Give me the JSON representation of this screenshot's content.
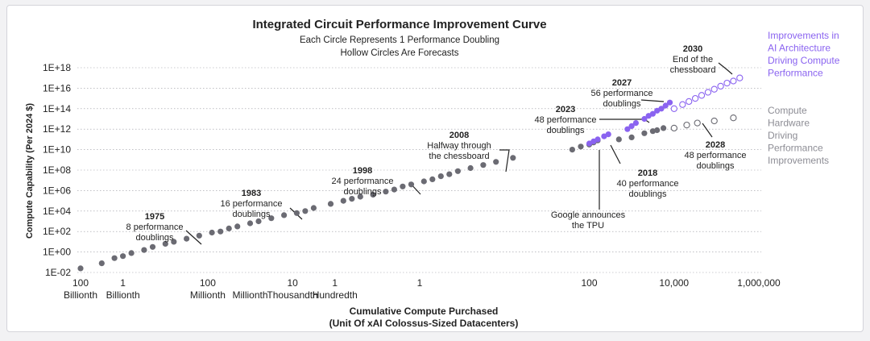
{
  "colors": {
    "hardware": "#6b6b73",
    "architecture": "#8a63f0",
    "text": "#222222",
    "grid": "#9a9aa2",
    "legend_hw": "#8d8d95",
    "legend_arch": "#8a63f0"
  },
  "chart_data": {
    "type": "scatter",
    "title": "Integrated Circuit Performance Improvement Curve",
    "subtitle": [
      "Each Circle Represents 1 Performance Doubling",
      "Hollow Circles Are Forecasts"
    ],
    "xlabel": [
      "Cumulative Compute Purchased",
      "(Unit Of xAI Colossus-Sized Datacenters)"
    ],
    "ylabel": "Compute Capability (Per 2024 $)",
    "x_scale": "log",
    "y_scale": "log",
    "xlim_log10": [
      -11,
      6.1
    ],
    "ylim_log10": [
      -2,
      18
    ],
    "x_ticks": [
      {
        "pos": -10,
        "value": "100",
        "unit": "Billionth"
      },
      {
        "pos": -9,
        "value": "1",
        "unit": "Billionth"
      },
      {
        "pos": -7,
        "value": "100",
        "unit": "Millionth"
      },
      {
        "pos": -6,
        "value": "",
        "unit": "Millionth"
      },
      {
        "pos": -5,
        "value": "10",
        "unit": "Thousandth"
      },
      {
        "pos": -4,
        "value": "1",
        "unit": "Hundredth"
      },
      {
        "pos": -2,
        "value": "1",
        "unit": ""
      },
      {
        "pos": 2,
        "value": "100",
        "unit": ""
      },
      {
        "pos": 4,
        "value": "10,000",
        "unit": ""
      },
      {
        "pos": 6,
        "value": "1,000,000",
        "unit": ""
      }
    ],
    "y_ticks": [
      "1E-02",
      "1E+00",
      "1E+02",
      "1E+04",
      "1E+06",
      "1E+08",
      "1E+10",
      "1E+12",
      "1E+14",
      "1E+16",
      "1E+18"
    ],
    "series": [
      {
        "name": "Compute Hardware Driving Performance Improvements",
        "color": "#6b6b73",
        "hollow": false,
        "points": [
          [
            -10,
            -1.6
          ],
          [
            -9.5,
            -1.1
          ],
          [
            -9.2,
            -0.6
          ],
          [
            -9.0,
            -0.4
          ],
          [
            -8.8,
            -0.1
          ],
          [
            -8.5,
            0.2
          ],
          [
            -8.3,
            0.5
          ],
          [
            -8.0,
            0.8
          ],
          [
            -7.8,
            1.0
          ],
          [
            -7.5,
            1.3
          ],
          [
            -7.2,
            1.6
          ],
          [
            -6.9,
            1.9
          ],
          [
            -6.7,
            2.0
          ],
          [
            -6.5,
            2.3
          ],
          [
            -6.3,
            2.5
          ],
          [
            -6.0,
            2.8
          ],
          [
            -5.8,
            3.0
          ],
          [
            -5.5,
            3.3
          ],
          [
            -5.2,
            3.6
          ],
          [
            -4.9,
            3.8
          ],
          [
            -4.7,
            4.0
          ],
          [
            -4.5,
            4.3
          ],
          [
            -4.1,
            4.7
          ],
          [
            -3.8,
            5.0
          ],
          [
            -3.6,
            5.2
          ],
          [
            -3.4,
            5.4
          ],
          [
            -3.1,
            5.6
          ],
          [
            -2.8,
            5.9
          ],
          [
            -2.6,
            6.1
          ],
          [
            -2.4,
            6.4
          ],
          [
            -2.2,
            6.6
          ],
          [
            -1.9,
            6.9
          ],
          [
            -1.7,
            7.1
          ],
          [
            -1.5,
            7.4
          ],
          [
            -1.3,
            7.6
          ],
          [
            -1.1,
            7.9
          ],
          [
            -0.8,
            8.2
          ],
          [
            -0.5,
            8.5
          ],
          [
            -0.2,
            8.8
          ],
          [
            0.2,
            9.2
          ],
          [
            1.6,
            10.0
          ],
          [
            1.8,
            10.3
          ],
          [
            2.0,
            10.5
          ],
          [
            2.1,
            10.7
          ],
          [
            2.2,
            10.9
          ],
          [
            2.7,
            11.0
          ],
          [
            3.0,
            11.2
          ],
          [
            3.3,
            11.6
          ],
          [
            3.5,
            11.8
          ],
          [
            3.6,
            11.9
          ],
          [
            3.75,
            12.1
          ]
        ]
      },
      {
        "name": "Improvements in AI Architecture Driving Compute Performance",
        "color": "#8a63f0",
        "hollow": false,
        "points": [
          [
            2.0,
            10.6
          ],
          [
            2.1,
            10.8
          ],
          [
            2.2,
            11.0
          ],
          [
            2.35,
            11.3
          ],
          [
            2.45,
            11.5
          ],
          [
            2.9,
            12.0
          ],
          [
            3.0,
            12.3
          ],
          [
            3.1,
            12.6
          ],
          [
            3.3,
            13.0
          ],
          [
            3.4,
            13.3
          ],
          [
            3.5,
            13.5
          ],
          [
            3.6,
            13.8
          ],
          [
            3.7,
            14.0
          ],
          [
            3.8,
            14.3
          ],
          [
            3.9,
            14.6
          ]
        ]
      },
      {
        "name": "Improvements in AI Architecture Driving Compute Performance",
        "color": "#8a63f0",
        "hollow": true,
        "points": [
          [
            4.0,
            14.0
          ],
          [
            4.2,
            14.4
          ],
          [
            4.35,
            14.7
          ],
          [
            4.5,
            15.0
          ],
          [
            4.65,
            15.3
          ],
          [
            4.8,
            15.6
          ],
          [
            4.95,
            15.9
          ],
          [
            5.1,
            16.2
          ],
          [
            5.25,
            16.5
          ],
          [
            5.4,
            16.7
          ],
          [
            5.55,
            17.0
          ]
        ]
      },
      {
        "name": "Compute Hardware Driving Performance Improvements",
        "color": "#6b6b73",
        "hollow": true,
        "points": [
          [
            4.0,
            12.1
          ],
          [
            4.3,
            12.4
          ],
          [
            4.55,
            12.6
          ],
          [
            4.95,
            12.8
          ],
          [
            5.4,
            13.1
          ]
        ]
      }
    ],
    "annotations": [
      {
        "bold": "1975",
        "lines": [
          "8 performance",
          "doublings"
        ]
      },
      {
        "bold": "1983",
        "lines": [
          "16 performance",
          "doublings"
        ]
      },
      {
        "bold": "1998",
        "lines": [
          "24 performance",
          "doublings"
        ]
      },
      {
        "bold": "2008",
        "lines": [
          "Halfway through",
          "the chessboard"
        ]
      },
      {
        "bold": "2023",
        "lines": [
          "48 performance",
          "doublings"
        ]
      },
      {
        "bold": "2027",
        "lines": [
          "56 performance",
          "doublings"
        ]
      },
      {
        "bold": "2030",
        "lines": [
          "End of the",
          "chessboard"
        ]
      },
      {
        "bold": "2018",
        "lines": [
          "40 performance",
          "doublings"
        ]
      },
      {
        "bold": "",
        "lines": [
          "Google announces",
          "the TPU"
        ]
      },
      {
        "bold": "2028",
        "lines": [
          "48 performance",
          "doublings"
        ]
      }
    ],
    "legend": [
      {
        "lines": [
          "Improvements in",
          "AI Architecture",
          "Driving Compute",
          "Performance"
        ]
      },
      {
        "lines": [
          "Compute",
          "Hardware",
          "Driving",
          "Performance",
          "Improvements"
        ]
      }
    ]
  }
}
